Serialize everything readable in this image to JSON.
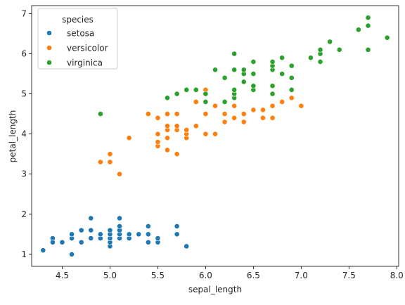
{
  "chart_data": {
    "type": "scatter",
    "title": "",
    "xlabel": "sepal_length",
    "ylabel": "petal_length",
    "xlim": [
      4.18,
      8.02
    ],
    "ylim": [
      0.7,
      7.2
    ],
    "xticks": [
      4.5,
      5.0,
      5.5,
      6.0,
      6.5,
      7.0,
      7.5,
      8.0
    ],
    "xtick_labels": [
      "4.5",
      "5.0",
      "5.5",
      "6.0",
      "6.5",
      "7.0",
      "7.5",
      "8.0"
    ],
    "yticks": [
      1,
      2,
      3,
      4,
      5,
      6,
      7
    ],
    "ytick_labels": [
      "1",
      "2",
      "3",
      "4",
      "5",
      "6",
      "7"
    ],
    "grid": false,
    "legend": {
      "title": "species",
      "placement": "top-left"
    },
    "series": [
      {
        "name": "setosa",
        "color": "#1f77b4",
        "points": [
          [
            4.3,
            1.1
          ],
          [
            4.4,
            1.4
          ],
          [
            4.4,
            1.3
          ],
          [
            4.5,
            1.3
          ],
          [
            4.6,
            1.0
          ],
          [
            4.6,
            1.4
          ],
          [
            4.6,
            1.5
          ],
          [
            4.7,
            1.3
          ],
          [
            4.7,
            1.6
          ],
          [
            4.8,
            1.4
          ],
          [
            4.8,
            1.6
          ],
          [
            4.8,
            1.9
          ],
          [
            4.9,
            1.4
          ],
          [
            4.9,
            1.5
          ],
          [
            5.0,
            1.2
          ],
          [
            5.0,
            1.3
          ],
          [
            5.0,
            1.4
          ],
          [
            5.0,
            1.5
          ],
          [
            5.0,
            1.6
          ],
          [
            5.1,
            1.4
          ],
          [
            5.1,
            1.5
          ],
          [
            5.1,
            1.6
          ],
          [
            5.1,
            1.7
          ],
          [
            5.1,
            1.9
          ],
          [
            5.2,
            1.4
          ],
          [
            5.2,
            1.5
          ],
          [
            5.3,
            1.5
          ],
          [
            5.4,
            1.3
          ],
          [
            5.4,
            1.5
          ],
          [
            5.4,
            1.7
          ],
          [
            5.5,
            1.3
          ],
          [
            5.5,
            1.4
          ],
          [
            5.7,
            1.5
          ],
          [
            5.7,
            1.7
          ],
          [
            5.8,
            1.2
          ]
        ]
      },
      {
        "name": "versicolor",
        "color": "#ff7f0e",
        "points": [
          [
            4.9,
            3.3
          ],
          [
            5.0,
            3.3
          ],
          [
            5.0,
            3.5
          ],
          [
            5.1,
            3.0
          ],
          [
            5.2,
            3.9
          ],
          [
            5.4,
            4.5
          ],
          [
            5.5,
            3.7
          ],
          [
            5.5,
            3.8
          ],
          [
            5.5,
            4.0
          ],
          [
            5.5,
            4.4
          ],
          [
            5.6,
            3.6
          ],
          [
            5.6,
            3.9
          ],
          [
            5.6,
            4.1
          ],
          [
            5.6,
            4.2
          ],
          [
            5.6,
            4.5
          ],
          [
            5.7,
            3.5
          ],
          [
            5.7,
            4.1
          ],
          [
            5.7,
            4.2
          ],
          [
            5.7,
            4.5
          ],
          [
            5.8,
            3.9
          ],
          [
            5.8,
            4.0
          ],
          [
            5.8,
            4.1
          ],
          [
            5.9,
            4.2
          ],
          [
            5.9,
            4.8
          ],
          [
            6.0,
            4.0
          ],
          [
            6.0,
            4.5
          ],
          [
            6.0,
            5.1
          ],
          [
            6.1,
            4.0
          ],
          [
            6.1,
            4.7
          ],
          [
            6.2,
            4.3
          ],
          [
            6.2,
            4.5
          ],
          [
            6.3,
            4.4
          ],
          [
            6.3,
            4.7
          ],
          [
            6.3,
            4.9
          ],
          [
            6.4,
            4.3
          ],
          [
            6.4,
            4.5
          ],
          [
            6.5,
            4.6
          ],
          [
            6.6,
            4.4
          ],
          [
            6.6,
            4.6
          ],
          [
            6.7,
            4.4
          ],
          [
            6.7,
            4.7
          ],
          [
            6.7,
            5.0
          ],
          [
            6.8,
            4.8
          ],
          [
            6.9,
            4.9
          ],
          [
            7.0,
            4.7
          ]
        ]
      },
      {
        "name": "virginica",
        "color": "#2ca02c",
        "points": [
          [
            4.9,
            4.5
          ],
          [
            5.6,
            4.9
          ],
          [
            5.7,
            5.0
          ],
          [
            5.8,
            5.1
          ],
          [
            5.9,
            5.1
          ],
          [
            6.0,
            4.8
          ],
          [
            6.0,
            5.0
          ],
          [
            6.1,
            5.6
          ],
          [
            6.2,
            4.8
          ],
          [
            6.2,
            5.4
          ],
          [
            6.3,
            4.9
          ],
          [
            6.3,
            5.0
          ],
          [
            6.3,
            5.1
          ],
          [
            6.3,
            5.6
          ],
          [
            6.3,
            6.0
          ],
          [
            6.4,
            5.3
          ],
          [
            6.4,
            5.5
          ],
          [
            6.4,
            5.6
          ],
          [
            6.5,
            5.1
          ],
          [
            6.5,
            5.2
          ],
          [
            6.5,
            5.5
          ],
          [
            6.5,
            5.8
          ],
          [
            6.7,
            5.0
          ],
          [
            6.7,
            5.2
          ],
          [
            6.7,
            5.6
          ],
          [
            6.7,
            5.7
          ],
          [
            6.7,
            5.8
          ],
          [
            6.8,
            5.5
          ],
          [
            6.8,
            5.9
          ],
          [
            6.9,
            5.1
          ],
          [
            6.9,
            5.4
          ],
          [
            6.9,
            5.7
          ],
          [
            7.1,
            5.9
          ],
          [
            7.2,
            5.8
          ],
          [
            7.2,
            6.0
          ],
          [
            7.2,
            6.1
          ],
          [
            7.3,
            6.3
          ],
          [
            7.4,
            6.1
          ],
          [
            7.6,
            6.6
          ],
          [
            7.7,
            6.1
          ],
          [
            7.7,
            6.7
          ],
          [
            7.7,
            6.9
          ],
          [
            7.9,
            6.4
          ]
        ]
      }
    ]
  }
}
